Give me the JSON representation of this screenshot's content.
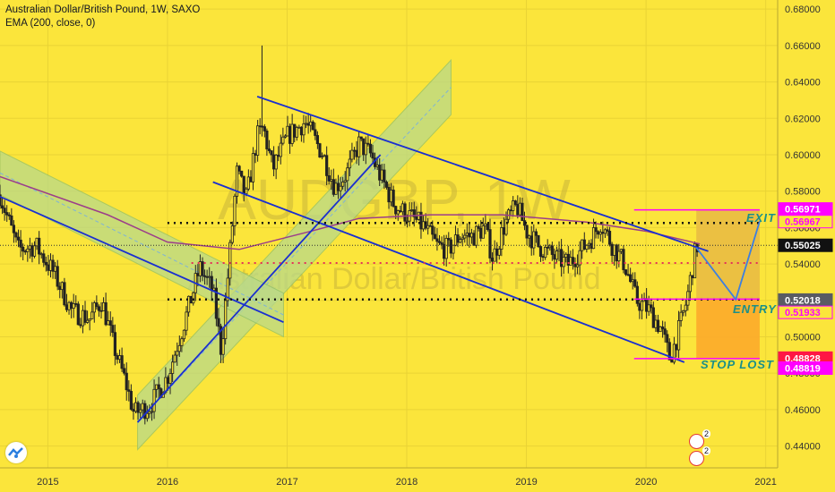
{
  "header": {
    "title": "Australian Dollar/British Pound, 1W, SAXO",
    "indicator": "EMA (200, close, 0)"
  },
  "watermark": {
    "symbol": "AUDGBP, 1W",
    "name": "Australian Dollar/British Pound"
  },
  "annotations": {
    "exit": "EXIT",
    "entry": "ENTRY",
    "stop": "STOP LOST"
  },
  "badges": [
    {
      "icon": "flag-australia-icon",
      "count": "2"
    },
    {
      "icon": "flag-uk-icon",
      "count": "2"
    }
  ],
  "colors": {
    "background": "#fbe53b",
    "candle": "#222222",
    "trendline": "#1a2fd0",
    "ema": "#9c3d8a",
    "magenta": "#ff00ff",
    "price_tag": "#111111",
    "stop_tag": "#ff1744",
    "zone_profit": "#e9bb44",
    "zone_loss": "#fcaa2b"
  },
  "chart_data": {
    "type": "candlestick",
    "x_ticks": [
      "2015",
      "2016",
      "2017",
      "2018",
      "2019",
      "2020",
      "2021"
    ],
    "y_ticks": [
      "0.68000",
      "0.66000",
      "0.64000",
      "0.62000",
      "0.60000",
      "0.58000",
      "0.56000",
      "0.54000",
      "0.52000",
      "0.50000",
      "0.48000",
      "0.46000",
      "0.44000"
    ],
    "ylim": [
      0.428,
      0.685
    ],
    "xlim": [
      2014.6,
      2021.1
    ],
    "price_labels": [
      {
        "value": "0.56971",
        "y": 0.56971,
        "style": "magenta"
      },
      {
        "value": "0.56967",
        "y": 0.56967,
        "style": "magenta-outline"
      },
      {
        "value": "0.55025",
        "y": 0.55025,
        "style": "current"
      },
      {
        "value": "0.52018",
        "y": 0.52018,
        "style": "gray"
      },
      {
        "value": "0.51933",
        "y": 0.51933,
        "style": "magenta-outline"
      },
      {
        "value": "0.48828",
        "y": 0.48828,
        "style": "red"
      },
      {
        "value": "0.48819",
        "y": 0.48819,
        "style": "magenta"
      }
    ],
    "anchors": [
      [
        2014.6,
        0.578
      ],
      [
        2014.75,
        0.548
      ],
      [
        2014.9,
        0.55
      ],
      [
        2015.05,
        0.535
      ],
      [
        2015.2,
        0.514
      ],
      [
        2015.35,
        0.51
      ],
      [
        2015.45,
        0.52
      ],
      [
        2015.55,
        0.495
      ],
      [
        2015.65,
        0.475
      ],
      [
        2015.72,
        0.458
      ],
      [
        2015.85,
        0.462
      ],
      [
        2016.0,
        0.478
      ],
      [
        2016.15,
        0.51
      ],
      [
        2016.27,
        0.538
      ],
      [
        2016.38,
        0.525
      ],
      [
        2016.45,
        0.492
      ],
      [
        2016.5,
        0.53
      ],
      [
        2016.58,
        0.59
      ],
      [
        2016.66,
        0.576
      ],
      [
        2016.75,
        0.61
      ],
      [
        2016.8,
        0.615
      ],
      [
        2016.88,
        0.592
      ],
      [
        2017.0,
        0.61
      ],
      [
        2017.15,
        0.618
      ],
      [
        2017.3,
        0.6
      ],
      [
        2017.4,
        0.582
      ],
      [
        2017.5,
        0.59
      ],
      [
        2017.6,
        0.606
      ],
      [
        2017.7,
        0.6
      ],
      [
        2017.78,
        0.588
      ],
      [
        2017.9,
        0.572
      ],
      [
        2018.05,
        0.565
      ],
      [
        2018.15,
        0.56
      ],
      [
        2018.25,
        0.55
      ],
      [
        2018.35,
        0.548
      ],
      [
        2018.45,
        0.556
      ],
      [
        2018.55,
        0.555
      ],
      [
        2018.65,
        0.56
      ],
      [
        2018.72,
        0.543
      ],
      [
        2018.82,
        0.562
      ],
      [
        2018.92,
        0.572
      ],
      [
        2019.0,
        0.558
      ],
      [
        2019.1,
        0.55
      ],
      [
        2019.25,
        0.543
      ],
      [
        2019.35,
        0.54
      ],
      [
        2019.45,
        0.547
      ],
      [
        2019.55,
        0.555
      ],
      [
        2019.62,
        0.563
      ],
      [
        2019.72,
        0.55
      ],
      [
        2019.82,
        0.54
      ],
      [
        2019.92,
        0.52
      ],
      [
        2020.02,
        0.515
      ],
      [
        2020.12,
        0.505
      ],
      [
        2020.2,
        0.488
      ],
      [
        2020.26,
        0.5
      ],
      [
        2020.34,
        0.52
      ],
      [
        2020.42,
        0.55
      ]
    ],
    "ema": [
      [
        2014.6,
        0.588
      ],
      [
        2015.5,
        0.567
      ],
      [
        2016.0,
        0.552
      ],
      [
        2016.6,
        0.548
      ],
      [
        2017.2,
        0.558
      ],
      [
        2017.6,
        0.565
      ],
      [
        2018.2,
        0.567
      ],
      [
        2018.8,
        0.567
      ],
      [
        2019.5,
        0.563
      ],
      [
        2020.0,
        0.558
      ],
      [
        2020.45,
        0.551
      ]
    ],
    "trendlines": [
      {
        "name": "upper-channel-line",
        "p1": [
          2016.75,
          0.632
        ],
        "p2": [
          2020.52,
          0.547
        ]
      },
      {
        "name": "lower-channel-line",
        "p1": [
          2016.38,
          0.585
        ],
        "p2": [
          2020.32,
          0.486
        ]
      },
      {
        "name": "rising-support-line",
        "p1": [
          2015.75,
          0.453
        ],
        "p2": [
          2017.78,
          0.6
        ]
      },
      {
        "name": "falling-line-left",
        "p1": [
          2014.6,
          0.577
        ],
        "p2": [
          2016.97,
          0.508
        ]
      }
    ],
    "bands": [
      {
        "name": "rising-channel-band",
        "p1": [
          2015.75,
          0.453
        ],
        "p2": [
          2018.37,
          0.637
        ],
        "width": 0.015
      },
      {
        "name": "falling-channel-band",
        "p1": [
          2014.6,
          0.59
        ],
        "p2": [
          2016.97,
          0.512
        ],
        "width": 0.012
      }
    ],
    "levels": [
      {
        "name": "exit-level",
        "y": 0.5625,
        "x": [
          2016.0,
          2020.95
        ],
        "style": "black-dotted"
      },
      {
        "name": "mid-level",
        "y": 0.5405,
        "x": [
          2016.2,
          2020.95
        ],
        "style": "red-dotted"
      },
      {
        "name": "entry-level",
        "y": 0.5205,
        "x": [
          2016.0,
          2020.95
        ],
        "style": "black-dotted"
      },
      {
        "name": "current-price-line",
        "y": 0.55025,
        "x": [
          2014.6,
          2021.1
        ],
        "style": "thin-dotted"
      },
      {
        "name": "target-line",
        "y": 0.5697,
        "x": [
          2019.9,
          2020.95
        ],
        "style": "magenta"
      },
      {
        "name": "entry-line",
        "y": 0.5207,
        "x": [
          2019.9,
          2020.95
        ],
        "style": "magenta"
      },
      {
        "name": "stop-line",
        "y": 0.488,
        "x": [
          2019.9,
          2020.95
        ],
        "style": "magenta"
      }
    ],
    "zones": [
      {
        "name": "profit-zone",
        "x": [
          2020.42,
          2020.95
        ],
        "y": [
          0.5207,
          0.5697
        ]
      },
      {
        "name": "loss-zone",
        "x": [
          2020.42,
          2020.95
        ],
        "y": [
          0.488,
          0.5207
        ]
      }
    ],
    "projection": [
      [
        2020.42,
        0.549
      ],
      [
        2020.75,
        0.5205
      ],
      [
        2020.95,
        0.5635
      ]
    ]
  }
}
